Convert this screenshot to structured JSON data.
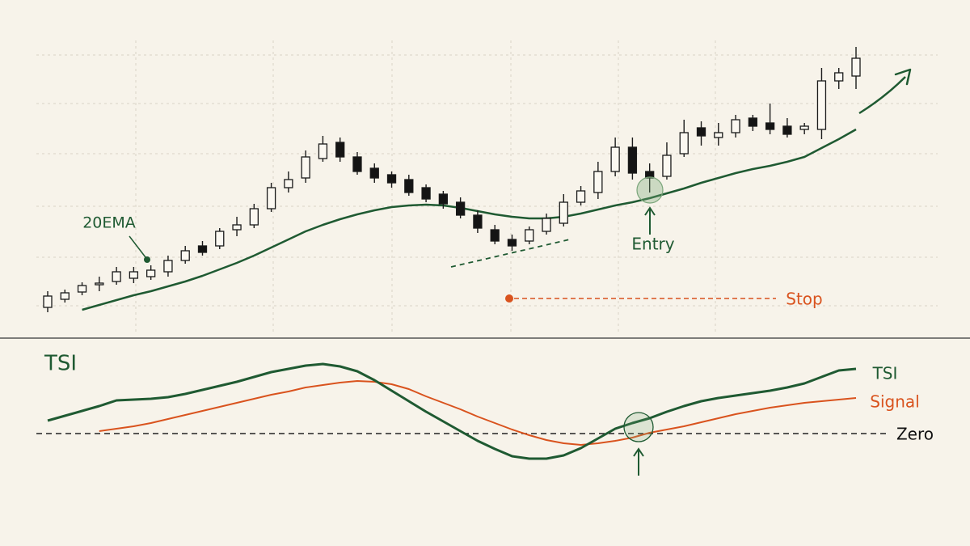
{
  "chart_data": [
    {
      "type": "candlestick",
      "open": [
        30,
        40,
        49,
        58,
        62,
        66,
        68,
        74,
        88,
        106,
        106,
        126,
        132,
        152,
        178,
        190,
        214,
        234,
        216,
        202,
        194,
        188,
        178,
        170,
        160,
        144,
        126,
        114,
        112,
        124,
        134,
        160,
        172,
        198,
        228,
        198,
        192,
        220,
        252,
        240,
        246,
        264,
        258,
        254,
        250,
        250,
        310,
        316
      ],
      "high": [
        50,
        52,
        61,
        68,
        80,
        80,
        82,
        94,
        106,
        112,
        128,
        142,
        158,
        184,
        198,
        224,
        242,
        240,
        222,
        208,
        198,
        194,
        182,
        174,
        166,
        150,
        132,
        120,
        130,
        146,
        170,
        180,
        210,
        240,
        240,
        208,
        234,
        262,
        260,
        258,
        268,
        268,
        282,
        264,
        258,
        326,
        326,
        352
      ],
      "low": [
        24,
        36,
        45,
        50,
        58,
        60,
        64,
        68,
        84,
        94,
        102,
        118,
        128,
        148,
        172,
        184,
        210,
        210,
        194,
        184,
        178,
        168,
        160,
        152,
        140,
        122,
        108,
        100,
        108,
        120,
        130,
        156,
        164,
        192,
        188,
        172,
        188,
        216,
        230,
        230,
        240,
        248,
        244,
        240,
        244,
        238,
        300,
        300
      ],
      "close": [
        44,
        48,
        57,
        60,
        74,
        74,
        76,
        88,
        100,
        98,
        124,
        132,
        152,
        178,
        188,
        216,
        232,
        216,
        198,
        190,
        184,
        172,
        164,
        158,
        144,
        128,
        112,
        106,
        126,
        140,
        160,
        174,
        198,
        228,
        196,
        190,
        218,
        246,
        242,
        246,
        262,
        254,
        250,
        244,
        254,
        310,
        320,
        338
      ],
      "up_color": "#fbf8f1",
      "down_color": "#141414",
      "wick_color": "#1a1a1a",
      "series": [
        {
          "name": "20EMA",
          "color": "#1f5a32",
          "values": [
            null,
            null,
            27,
            33,
            39,
            45,
            50,
            56,
            62,
            69,
            77,
            85,
            94,
            104,
            114,
            124,
            132,
            139,
            145,
            150,
            154,
            156,
            157,
            156,
            153,
            149,
            145,
            142,
            140,
            140,
            142,
            146,
            151,
            156,
            160,
            165,
            171,
            177,
            184,
            190,
            196,
            201,
            205,
            210,
            216,
            227,
            238,
            250
          ]
        }
      ],
      "stop": {
        "label": "Stop",
        "value": 41,
        "color": "#d9531e"
      },
      "entry_label": "Entry",
      "ylim": [
        0,
        370
      ]
    },
    {
      "type": "line",
      "title": "TSI",
      "series": [
        {
          "name": "TSI",
          "color": "#1f5a32",
          "values": [
            16,
            22,
            28,
            34,
            41,
            42,
            43,
            45,
            49,
            54,
            59,
            64,
            70,
            76,
            80,
            84,
            86,
            83,
            77,
            66,
            53,
            40,
            27,
            15,
            3,
            -9,
            -19,
            -28,
            -31,
            -31,
            -27,
            -18,
            -6,
            6,
            13,
            19,
            27,
            34,
            40,
            44,
            47,
            50,
            53,
            57,
            62,
            70,
            78,
            80
          ]
        },
        {
          "name": "Signal",
          "color": "#d9531e",
          "values": [
            null,
            null,
            null,
            3,
            6,
            9,
            13,
            18,
            23,
            28,
            33,
            38,
            43,
            48,
            52,
            57,
            60,
            63,
            65,
            64,
            61,
            55,
            46,
            38,
            30,
            21,
            13,
            5,
            -2,
            -8,
            -12,
            -14,
            -12,
            -9,
            -5,
            1,
            5,
            9,
            14,
            19,
            24,
            28,
            32,
            35,
            38,
            40,
            42,
            44
          ]
        }
      ],
      "zero": {
        "label": "Zero",
        "value": 0
      },
      "ylim": [
        -90,
        110
      ]
    }
  ]
}
